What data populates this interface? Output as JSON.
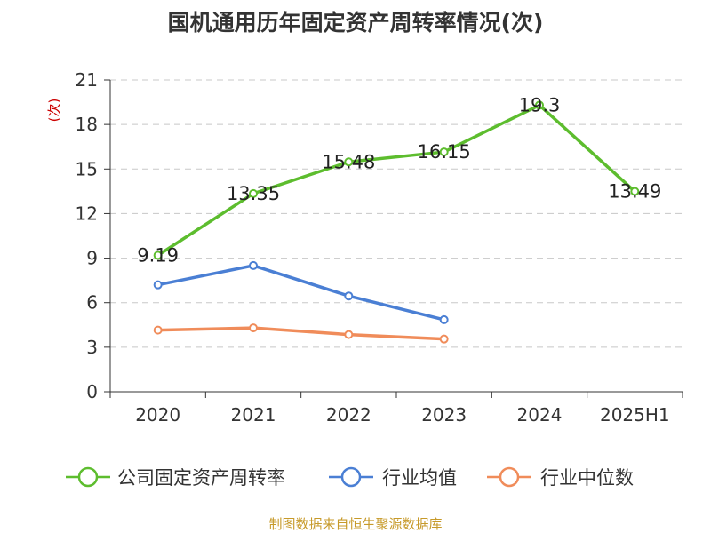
{
  "chart_data": {
    "type": "line",
    "title": "国机通用历年固定资产周转率情况(次)",
    "ylabel": "(次)",
    "xlabel": "",
    "categories": [
      "2020",
      "2021",
      "2022",
      "2023",
      "2024",
      "2025H1"
    ],
    "ylim": [
      0,
      21
    ],
    "yticks": [
      0,
      3,
      6,
      9,
      12,
      15,
      18,
      21
    ],
    "grid": true,
    "legend_position": "bottom",
    "series": [
      {
        "name": "公司固定资产周转率",
        "color": "#5dbd2e",
        "values": [
          9.19,
          13.35,
          15.48,
          16.15,
          19.3,
          13.49
        ],
        "labels": [
          "9.19",
          "13.35",
          "15.48",
          "16.15",
          "19.3",
          "13.49"
        ]
      },
      {
        "name": "行业均值",
        "color": "#4a7fd4",
        "values": [
          7.2,
          8.5,
          6.45,
          4.85,
          null,
          null
        ]
      },
      {
        "name": "行业中位数",
        "color": "#f08c5a",
        "values": [
          4.15,
          4.3,
          3.85,
          3.55,
          null,
          null
        ]
      }
    ],
    "source": "制图数据来自恒生聚源数据库"
  }
}
